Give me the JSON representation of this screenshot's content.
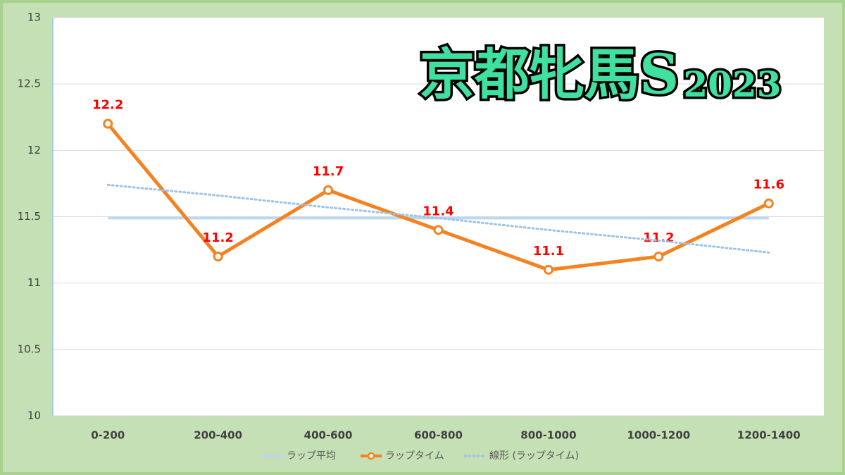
{
  "chart_data": {
    "type": "line",
    "title": "京都牝馬S",
    "subtitle": "2023",
    "categories": [
      "0-200",
      "200-400",
      "400-600",
      "600-800",
      "800-1000",
      "1000-1200",
      "1200-1400"
    ],
    "series": [
      {
        "name": "ラップ平均",
        "color": "#bdd7ee",
        "style": "solid",
        "values": [
          11.49,
          11.49,
          11.49,
          11.49,
          11.49,
          11.49,
          11.49
        ]
      },
      {
        "name": "ラップタイム",
        "color": "#f58220",
        "style": "marker",
        "values": [
          12.2,
          11.2,
          11.7,
          11.4,
          11.1,
          11.2,
          11.6
        ],
        "data_labels": true
      },
      {
        "name": "線形 (ラップタイム)",
        "color": "#9dc3e6",
        "style": "dotted",
        "values": [
          11.74,
          11.66,
          11.57,
          11.49,
          11.4,
          11.32,
          11.23
        ]
      }
    ],
    "ylim": [
      10,
      13
    ],
    "yticks": [
      10,
      10.5,
      11,
      11.5,
      12,
      12.5,
      13
    ],
    "grid": true,
    "legend": "bottom"
  }
}
